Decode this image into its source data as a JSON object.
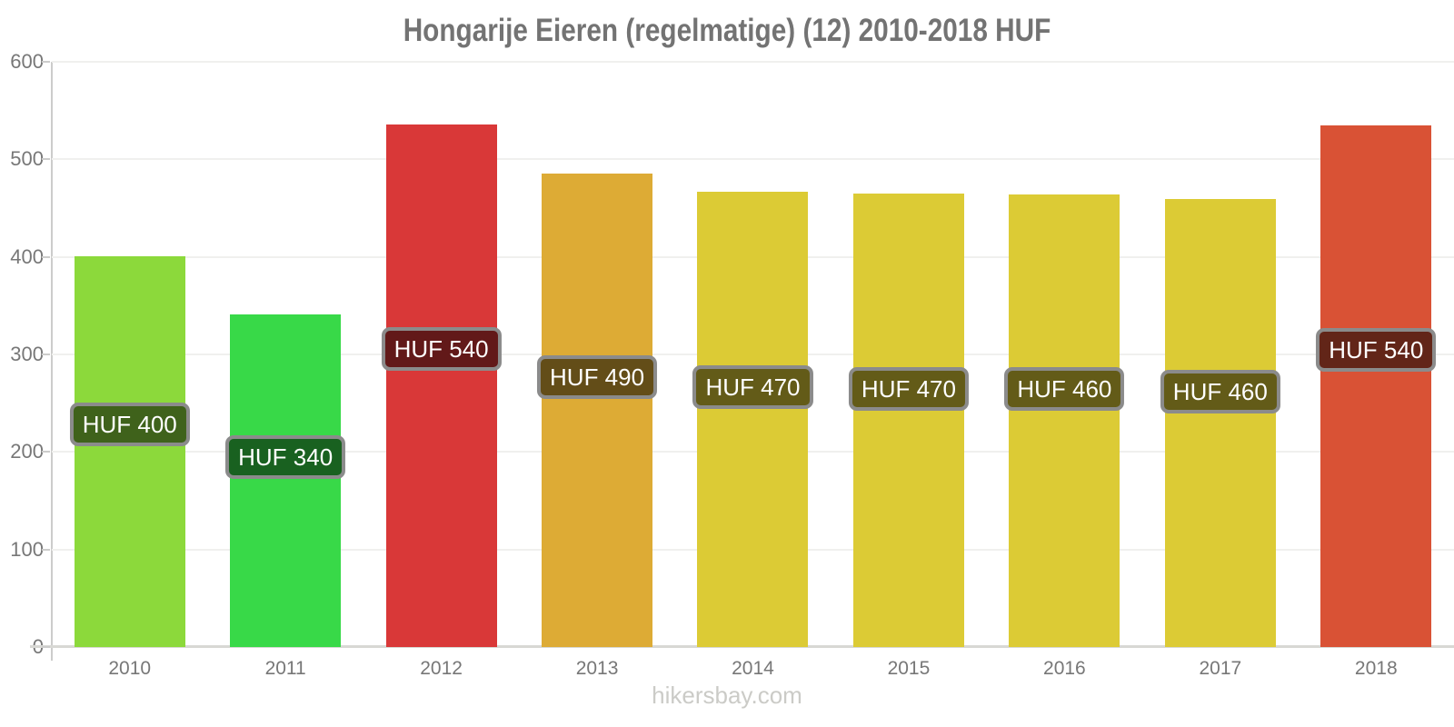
{
  "title": "Hongarije Eieren (regelmatige) (12) 2010-2018 HUF",
  "footer": "hikersbay.com",
  "chart_data": {
    "type": "bar",
    "title": "Hongarije Eieren (regelmatige) (12) 2010-2018 HUF",
    "xlabel": "",
    "ylabel": "",
    "currency": "HUF",
    "ylim": [
      0,
      600
    ],
    "yticks": [
      0,
      100,
      200,
      300,
      400,
      500,
      600
    ],
    "grid": "horizontal-faint",
    "legend": "none",
    "categories": [
      "2010",
      "2011",
      "2012",
      "2013",
      "2014",
      "2015",
      "2016",
      "2017",
      "2018"
    ],
    "values": [
      400,
      340,
      540,
      490,
      470,
      470,
      460,
      460,
      540
    ],
    "bar_rendered_values": [
      401,
      341,
      536,
      485,
      467,
      465,
      464,
      459,
      535
    ],
    "bar_labels": [
      "HUF 400",
      "HUF 340",
      "HUF 540",
      "HUF 490",
      "HUF 470",
      "HUF 470",
      "HUF 460",
      "HUF 460",
      "HUF 540"
    ],
    "bar_colors": [
      "#8CD93B",
      "#38D948",
      "#D93838",
      "#DDAB35",
      "#DCCB35",
      "#DCCB35",
      "#DCCB35",
      "#DCCB35",
      "#D95235"
    ],
    "label_bg_colors": [
      "#3F621B",
      "#196120",
      "#621919",
      "#634D18",
      "#635B18",
      "#635B18",
      "#635B18",
      "#635B18",
      "#622518"
    ],
    "label_border_color": "#8B8B8B",
    "label_text_color": "#FFFFFF",
    "axis_color": "#CCCCCB",
    "gridline_color": "#F0F0EE",
    "tick_text_color": "#777777",
    "title_color": "#737373",
    "footer_color": "#CBCBC7"
  }
}
